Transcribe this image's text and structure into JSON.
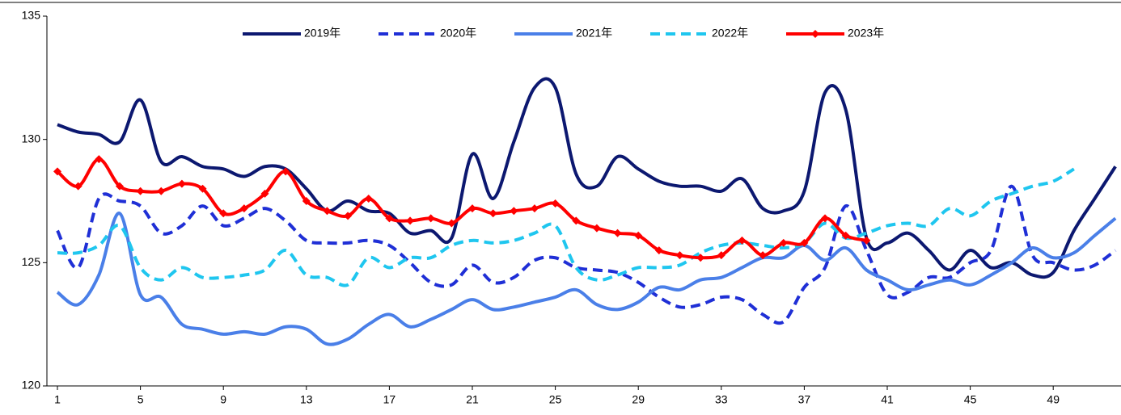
{
  "chart_data": {
    "type": "line",
    "categories": [
      "1",
      null,
      null,
      null,
      "5",
      null,
      null,
      null,
      "9",
      null,
      null,
      null,
      "13",
      null,
      null,
      null,
      "17",
      null,
      null,
      null,
      "21",
      null,
      null,
      null,
      "25",
      null,
      null,
      null,
      "29",
      null,
      null,
      null,
      "33",
      null,
      null,
      null,
      "37",
      null,
      null,
      null,
      "41",
      null,
      null,
      null,
      "45",
      null,
      null,
      null,
      "49",
      null,
      null,
      null
    ],
    "ylim": [
      120,
      135
    ],
    "yticks": [
      120,
      125,
      130,
      135
    ],
    "grid": false,
    "legend": "top",
    "smooth": true,
    "series": [
      {
        "name": "2019年",
        "color": "#0c1870",
        "style": "solid",
        "marker": "none",
        "values": [
          130.6,
          130.3,
          130.2,
          129.9,
          131.6,
          129.1,
          129.3,
          128.9,
          128.8,
          128.5,
          128.9,
          128.8,
          128.0,
          127.1,
          127.5,
          127.1,
          127.0,
          126.2,
          126.3,
          126.0,
          129.4,
          127.6,
          129.9,
          132.1,
          132.1,
          128.6,
          128.1,
          129.3,
          128.8,
          128.3,
          128.1,
          128.1,
          127.9,
          128.4,
          127.2,
          127.1,
          127.9,
          131.9,
          131.2,
          126.0,
          125.8,
          126.2,
          125.5,
          124.7,
          125.5,
          124.8,
          125.0,
          124.5,
          124.6,
          126.3,
          127.6,
          128.9
        ]
      },
      {
        "name": "2020年",
        "color": "#1f2fd6",
        "style": "dashed",
        "marker": "none",
        "values": [
          126.3,
          124.8,
          127.6,
          127.5,
          127.3,
          126.2,
          126.5,
          127.3,
          126.5,
          126.8,
          127.2,
          126.7,
          125.9,
          125.8,
          125.8,
          125.9,
          125.7,
          125.0,
          124.2,
          124.1,
          124.9,
          124.2,
          124.4,
          125.1,
          125.2,
          124.8,
          124.7,
          124.6,
          124.2,
          123.6,
          123.2,
          123.3,
          123.6,
          123.5,
          122.9,
          122.6,
          124.0,
          124.8,
          127.3,
          125.5,
          123.7,
          123.8,
          124.4,
          124.4,
          125.0,
          125.5,
          128.1,
          125.3,
          125.0,
          124.7,
          124.9,
          125.5
        ]
      },
      {
        "name": "2021年",
        "color": "#4a7fe8",
        "style": "solid",
        "marker": "none",
        "values": [
          123.8,
          123.3,
          124.5,
          127.0,
          123.7,
          123.6,
          122.5,
          122.3,
          122.1,
          122.2,
          122.1,
          122.4,
          122.3,
          121.7,
          121.9,
          122.5,
          122.9,
          122.4,
          122.7,
          123.1,
          123.5,
          123.1,
          123.2,
          123.4,
          123.6,
          123.9,
          123.3,
          123.1,
          123.4,
          124.0,
          123.9,
          124.3,
          124.4,
          124.8,
          125.2,
          125.2,
          125.7,
          125.1,
          125.6,
          124.7,
          124.3,
          123.9,
          124.1,
          124.3,
          124.1,
          124.5,
          125.0,
          125.6,
          125.2,
          125.4,
          126.1,
          126.8
        ]
      },
      {
        "name": "2022年",
        "color": "#1fc6ef",
        "style": "dashed",
        "marker": "none",
        "values": [
          125.4,
          125.4,
          125.7,
          126.5,
          124.8,
          124.3,
          124.8,
          124.4,
          124.4,
          124.5,
          124.7,
          125.5,
          124.5,
          124.4,
          124.1,
          125.2,
          124.8,
          125.2,
          125.2,
          125.7,
          125.9,
          125.8,
          125.9,
          126.2,
          126.5,
          124.8,
          124.3,
          124.5,
          124.8,
          124.8,
          124.9,
          125.4,
          125.7,
          125.8,
          125.7,
          125.6,
          125.8,
          126.6,
          126.0,
          126.2,
          126.5,
          126.6,
          126.5,
          127.2,
          126.9,
          127.5,
          127.8,
          128.1,
          128.3,
          128.8,
          null,
          null
        ]
      },
      {
        "name": "2023年",
        "color": "#ff0000",
        "style": "solid",
        "marker": "diamond",
        "values": [
          128.7,
          128.1,
          129.2,
          128.1,
          127.9,
          127.9,
          128.2,
          128.0,
          127.0,
          127.2,
          127.8,
          128.7,
          127.5,
          127.1,
          126.9,
          127.6,
          126.8,
          126.7,
          126.8,
          126.6,
          127.2,
          127.0,
          127.1,
          127.2,
          127.4,
          126.7,
          126.4,
          126.2,
          126.1,
          125.5,
          125.3,
          125.2,
          125.3,
          125.9,
          125.3,
          125.8,
          125.8,
          126.8,
          126.1,
          125.9,
          null,
          null,
          null,
          null,
          null,
          null,
          null,
          null,
          null,
          null,
          null,
          null
        ]
      }
    ]
  }
}
